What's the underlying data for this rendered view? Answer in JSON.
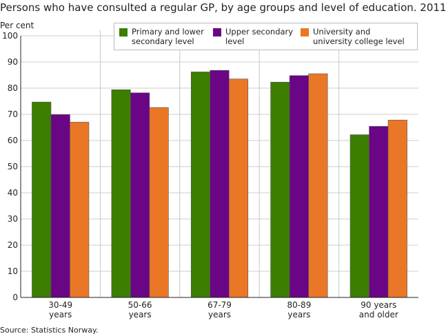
{
  "chart_data": {
    "type": "bar",
    "title": "Persons who have consulted a regular GP, by age groups and level of education. 2011",
    "ylabel": "Per cent",
    "xlabel": "",
    "ylim": [
      0,
      100
    ],
    "yticks": [
      0,
      10,
      20,
      30,
      40,
      50,
      60,
      70,
      80,
      90,
      100
    ],
    "grid": true,
    "legend_position": "top",
    "categories": [
      [
        "30-49",
        "years"
      ],
      [
        "50-66",
        "years"
      ],
      [
        "67-79",
        "years"
      ],
      [
        "80-89",
        "years"
      ],
      [
        "90 years",
        "and older"
      ]
    ],
    "series": [
      {
        "name": "Primary and lower secondary level",
        "color": "#3b7e00",
        "values": [
          74.7,
          79.4,
          86.2,
          82.3,
          62.2
        ]
      },
      {
        "name": "Upper secondary level",
        "color": "#6a0586",
        "values": [
          69.9,
          78.2,
          86.8,
          84.8,
          65.4
        ]
      },
      {
        "name": "University and university college level",
        "color": "#ea7726",
        "values": [
          67.0,
          72.6,
          83.5,
          85.5,
          67.8
        ]
      }
    ],
    "legend_lines": [
      [
        "Primary and lower",
        "secondary level"
      ],
      [
        "Upper secondary",
        "level"
      ],
      [
        "University and",
        "university college level"
      ]
    ],
    "source": "Source: Statistics Norway."
  }
}
